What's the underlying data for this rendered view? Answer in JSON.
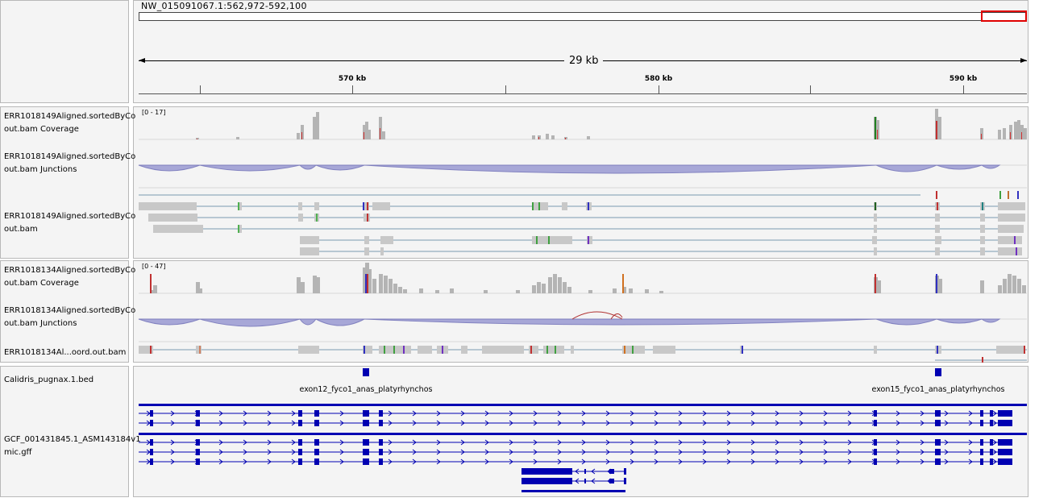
{
  "header": {
    "locus": "NW_015091067.1:562,972-592,100",
    "span_label": "29 kb",
    "ticks": [
      "570 kb",
      "580 kb",
      "590 kb"
    ]
  },
  "tracks": {
    "cov1": {
      "name_line1": "ERR1018149Aligned.sortedByCo",
      "name_line2": "out.bam Coverage",
      "range": "[0 - 17]"
    },
    "junc1": {
      "name_line1": "ERR1018149Aligned.sortedByCo",
      "name_line2": "out.bam Junctions"
    },
    "bam1": {
      "name_line1": "ERR1018149Aligned.sortedByCo",
      "name_line2": "out.bam"
    },
    "cov2": {
      "name_line1": "ERR1018134Aligned.sortedByCo",
      "name_line2": "out.bam Coverage",
      "range": "[0 - 47]"
    },
    "junc2": {
      "name_line1": "ERR1018134Aligned.sortedByCo",
      "name_line2": "out.bam Junctions"
    },
    "bam2": {
      "name_line1": "ERR1018134Al...oord.out.bam"
    },
    "bed": {
      "name_line1": "Calidris_pugnax.1.bed",
      "features": [
        "exon12_fyco1_anas_platyrhynchos",
        "exon15_fyco1_anas_platyrhynchos"
      ]
    },
    "gff": {
      "name_line1": "GCF_001431845.1_ASM143184v1",
      "name_line2": "mic.gff"
    }
  },
  "colors": {
    "coverage": "#b4b4b4",
    "junction_fill": "#9a9ad2",
    "junction_stroke": "#6f6fb8",
    "junction_red": "#b03030",
    "gene": "#0000b2",
    "selection": "#e00000"
  }
}
